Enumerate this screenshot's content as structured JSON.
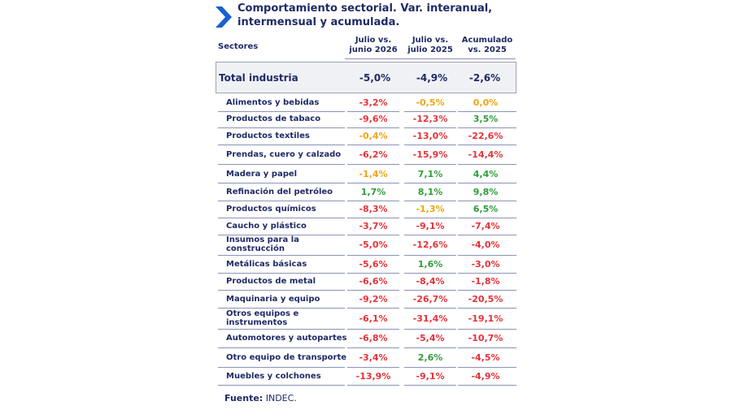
{
  "header": {
    "title": "Comportamiento sectorial. Var. interanual, intermensual y acumulada."
  },
  "columns": {
    "sector_header": "Sectores",
    "col1_line1": "Julio vs.",
    "col1_line2": "junio 2026",
    "col2_line1": "Julio vs.",
    "col2_line2": "julio 2025",
    "col3_line1": "Acumulado",
    "col3_line2": "vs. 2025"
  },
  "total": {
    "label": "Total industria",
    "values": [
      "-5,0%",
      "-4,9%",
      "-2,6%"
    ]
  },
  "rows": [
    {
      "label": "Alimentos y bebidas",
      "values": [
        "-3,2%",
        "-0,5%",
        "0,0%"
      ],
      "status": [
        "neg",
        "warn",
        "warn"
      ]
    },
    {
      "label": "Productos de tabaco",
      "values": [
        "-9,6%",
        "-12,3%",
        "3,5%"
      ],
      "status": [
        "neg",
        "neg",
        "pos"
      ]
    },
    {
      "label": "Productos textiles",
      "values": [
        "-0,4%",
        "-13,0%",
        "-22,6%"
      ],
      "status": [
        "warn",
        "neg",
        "neg"
      ]
    },
    {
      "label": "Prendas, cuero y calzado",
      "values": [
        "-6,2%",
        "-15,9%",
        "-14,4%"
      ],
      "status": [
        "neg",
        "neg",
        "neg"
      ]
    },
    {
      "label": "Madera y papel",
      "values": [
        "-1,4%",
        "7,1%",
        "4,4%"
      ],
      "status": [
        "warn",
        "pos",
        "pos"
      ]
    },
    {
      "label": "Refinación del petróleo",
      "values": [
        "1,7%",
        "8,1%",
        "9,8%"
      ],
      "status": [
        "pos",
        "pos",
        "pos"
      ]
    },
    {
      "label": "Productos químicos",
      "values": [
        "-8,3%",
        "-1,3%",
        "6,5%"
      ],
      "status": [
        "neg",
        "warn",
        "pos"
      ]
    },
    {
      "label": "Caucho y plástico",
      "values": [
        "-3,7%",
        "-9,1%",
        "-7,4%"
      ],
      "status": [
        "neg",
        "neg",
        "neg"
      ]
    },
    {
      "label": "Insumos para la construcción",
      "values": [
        "-5,0%",
        "-12,6%",
        "-4,0%"
      ],
      "status": [
        "neg",
        "neg",
        "neg"
      ]
    },
    {
      "label": "Metálicas básicas",
      "values": [
        "-5,6%",
        "1,6%",
        "-3,0%"
      ],
      "status": [
        "neg",
        "pos",
        "neg"
      ]
    },
    {
      "label": "Productos de metal",
      "values": [
        "-6,6%",
        "-8,4%",
        "-1,8%"
      ],
      "status": [
        "neg",
        "neg",
        "neg"
      ]
    },
    {
      "label": "Maquinaria y equipo",
      "values": [
        "-9,2%",
        "-26,7%",
        "-20,5%"
      ],
      "status": [
        "neg",
        "neg",
        "neg"
      ]
    },
    {
      "label": "Otros equipos e instrumentos",
      "values": [
        "-6,1%",
        "-31,4%",
        "-19,1%"
      ],
      "status": [
        "neg",
        "neg",
        "neg"
      ]
    },
    {
      "label": "Automotores y autopartes",
      "values": [
        "-6,8%",
        "-5,4%",
        "-10,7%"
      ],
      "status": [
        "neg",
        "neg",
        "neg"
      ]
    },
    {
      "label": "Otro equipo de transporte",
      "values": [
        "-3,4%",
        "2,6%",
        "-4,5%"
      ],
      "status": [
        "neg",
        "pos",
        "neg"
      ]
    },
    {
      "label": "Muebles y colchones",
      "values": [
        "-13,9%",
        "-9,1%",
        "-4,9%"
      ],
      "status": [
        "neg",
        "neg",
        "neg"
      ]
    }
  ],
  "footer": {
    "source_label": "Fuente:",
    "source_value": "INDEC."
  },
  "colors": {
    "text": "#1f2a66",
    "negative": "#e53238",
    "warning": "#f2a413",
    "positive": "#2e9d3a",
    "accent_chevron": "#1a5fd0"
  },
  "icons": {
    "title_marker": "chevron-right-icon"
  }
}
